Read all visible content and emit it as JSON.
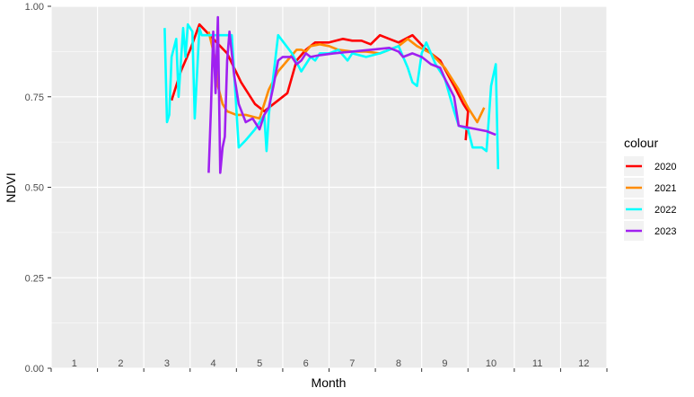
{
  "chart_data": {
    "type": "line",
    "xlabel": "Month",
    "ylabel": "NDVI",
    "xlim": [
      0.5,
      12.5
    ],
    "ylim": [
      0,
      1
    ],
    "x_ticks": [
      1,
      2,
      3,
      4,
      5,
      6,
      7,
      8,
      9,
      10,
      11,
      12
    ],
    "x_tick_labels": [
      "1",
      "2",
      "3",
      "4",
      "5",
      "6",
      "7",
      "8",
      "9",
      "10",
      "11",
      "12"
    ],
    "y_ticks": [
      0,
      0.25,
      0.5,
      0.75,
      1
    ],
    "y_tick_labels": [
      "0.00",
      "0.25",
      "0.50",
      "0.75",
      "1.00"
    ],
    "grid": true,
    "legend": {
      "title": "colour",
      "position": "right"
    },
    "series": [
      {
        "name": "2020",
        "color": "#ff0000",
        "points": [
          [
            3.1,
            0.74
          ],
          [
            3.3,
            0.82
          ],
          [
            3.5,
            0.88
          ],
          [
            3.7,
            0.95
          ],
          [
            4.0,
            0.91
          ],
          [
            4.3,
            0.87
          ],
          [
            4.6,
            0.79
          ],
          [
            4.9,
            0.73
          ],
          [
            5.1,
            0.71
          ],
          [
            5.3,
            0.73
          ],
          [
            5.6,
            0.76
          ],
          [
            5.8,
            0.85
          ],
          [
            6.0,
            0.88
          ],
          [
            6.2,
            0.9
          ],
          [
            6.5,
            0.9
          ],
          [
            6.8,
            0.91
          ],
          [
            7.0,
            0.905
          ],
          [
            7.2,
            0.905
          ],
          [
            7.4,
            0.895
          ],
          [
            7.6,
            0.92
          ],
          [
            7.8,
            0.91
          ],
          [
            8.0,
            0.9
          ],
          [
            8.3,
            0.92
          ],
          [
            8.6,
            0.88
          ],
          [
            8.9,
            0.85
          ],
          [
            9.2,
            0.78
          ],
          [
            9.4,
            0.73
          ],
          [
            9.5,
            0.71
          ],
          [
            9.45,
            0.63
          ]
        ]
      },
      {
        "name": "2021",
        "color": "#ff8c00",
        "points": [
          [
            3.9,
            0.93
          ],
          [
            4.05,
            0.85
          ],
          [
            4.1,
            0.78
          ],
          [
            4.2,
            0.73
          ],
          [
            4.3,
            0.71
          ],
          [
            4.5,
            0.7
          ],
          [
            4.7,
            0.7
          ],
          [
            5.0,
            0.69
          ],
          [
            5.1,
            0.73
          ],
          [
            5.2,
            0.77
          ],
          [
            5.4,
            0.82
          ],
          [
            5.6,
            0.85
          ],
          [
            5.8,
            0.88
          ],
          [
            5.9,
            0.88
          ],
          [
            6.0,
            0.875
          ],
          [
            6.1,
            0.89
          ],
          [
            6.3,
            0.895
          ],
          [
            6.5,
            0.89
          ],
          [
            6.7,
            0.88
          ],
          [
            7.0,
            0.875
          ],
          [
            7.3,
            0.875
          ],
          [
            7.6,
            0.87
          ],
          [
            7.8,
            0.88
          ],
          [
            8.0,
            0.89
          ],
          [
            8.2,
            0.91
          ],
          [
            8.4,
            0.89
          ],
          [
            8.7,
            0.87
          ],
          [
            9.0,
            0.83
          ],
          [
            9.3,
            0.77
          ],
          [
            9.5,
            0.72
          ],
          [
            9.7,
            0.68
          ],
          [
            9.85,
            0.72
          ]
        ]
      },
      {
        "name": "2022",
        "color": "#00ffff",
        "points": [
          [
            2.95,
            0.94
          ],
          [
            3.0,
            0.68
          ],
          [
            3.05,
            0.7
          ],
          [
            3.1,
            0.86
          ],
          [
            3.2,
            0.91
          ],
          [
            3.25,
            0.75
          ],
          [
            3.35,
            0.94
          ],
          [
            3.4,
            0.86
          ],
          [
            3.45,
            0.95
          ],
          [
            3.55,
            0.93
          ],
          [
            3.6,
            0.69
          ],
          [
            3.7,
            0.94
          ],
          [
            3.75,
            0.92
          ],
          [
            3.9,
            0.92
          ],
          [
            4.2,
            0.92
          ],
          [
            4.4,
            0.92
          ],
          [
            4.55,
            0.61
          ],
          [
            4.7,
            0.63
          ],
          [
            4.9,
            0.66
          ],
          [
            5.1,
            0.7
          ],
          [
            5.15,
            0.6
          ],
          [
            5.2,
            0.7
          ],
          [
            5.4,
            0.92
          ],
          [
            5.7,
            0.87
          ],
          [
            5.9,
            0.82
          ],
          [
            6.1,
            0.86
          ],
          [
            6.2,
            0.85
          ],
          [
            6.3,
            0.87
          ],
          [
            6.5,
            0.87
          ],
          [
            6.7,
            0.88
          ],
          [
            6.9,
            0.85
          ],
          [
            7.0,
            0.87
          ],
          [
            7.3,
            0.86
          ],
          [
            7.6,
            0.87
          ],
          [
            7.8,
            0.88
          ],
          [
            8.0,
            0.89
          ],
          [
            8.2,
            0.83
          ],
          [
            8.3,
            0.79
          ],
          [
            8.4,
            0.78
          ],
          [
            8.5,
            0.87
          ],
          [
            8.6,
            0.9
          ],
          [
            8.7,
            0.87
          ],
          [
            8.8,
            0.84
          ],
          [
            9.0,
            0.8
          ],
          [
            9.2,
            0.71
          ],
          [
            9.3,
            0.67
          ],
          [
            9.5,
            0.66
          ],
          [
            9.6,
            0.61
          ],
          [
            9.7,
            0.61
          ],
          [
            9.8,
            0.61
          ],
          [
            9.9,
            0.6
          ],
          [
            10.0,
            0.78
          ],
          [
            10.1,
            0.84
          ],
          [
            10.15,
            0.55
          ]
        ]
      },
      {
        "name": "2023",
        "color": "#a020f0",
        "points": [
          [
            3.9,
            0.54
          ],
          [
            3.95,
            0.72
          ],
          [
            4.0,
            0.93
          ],
          [
            4.05,
            0.76
          ],
          [
            4.1,
            0.97
          ],
          [
            4.15,
            0.54
          ],
          [
            4.2,
            0.61
          ],
          [
            4.25,
            0.64
          ],
          [
            4.3,
            0.85
          ],
          [
            4.35,
            0.93
          ],
          [
            4.45,
            0.81
          ],
          [
            4.55,
            0.73
          ],
          [
            4.7,
            0.68
          ],
          [
            4.85,
            0.69
          ],
          [
            5.0,
            0.66
          ],
          [
            5.1,
            0.7
          ],
          [
            5.2,
            0.72
          ],
          [
            5.3,
            0.78
          ],
          [
            5.4,
            0.85
          ],
          [
            5.5,
            0.86
          ],
          [
            5.7,
            0.86
          ],
          [
            5.8,
            0.84
          ],
          [
            5.9,
            0.85
          ],
          [
            6.0,
            0.87
          ],
          [
            6.1,
            0.86
          ],
          [
            6.3,
            0.865
          ],
          [
            6.6,
            0.87
          ],
          [
            7.0,
            0.875
          ],
          [
            7.4,
            0.88
          ],
          [
            7.8,
            0.885
          ],
          [
            8.0,
            0.875
          ],
          [
            8.1,
            0.86
          ],
          [
            8.3,
            0.87
          ],
          [
            8.5,
            0.86
          ],
          [
            8.7,
            0.84
          ],
          [
            8.9,
            0.83
          ],
          [
            9.0,
            0.8
          ],
          [
            9.2,
            0.75
          ],
          [
            9.3,
            0.67
          ],
          [
            9.5,
            0.665
          ],
          [
            9.7,
            0.66
          ],
          [
            9.9,
            0.655
          ],
          [
            10.1,
            0.645
          ]
        ]
      }
    ]
  }
}
